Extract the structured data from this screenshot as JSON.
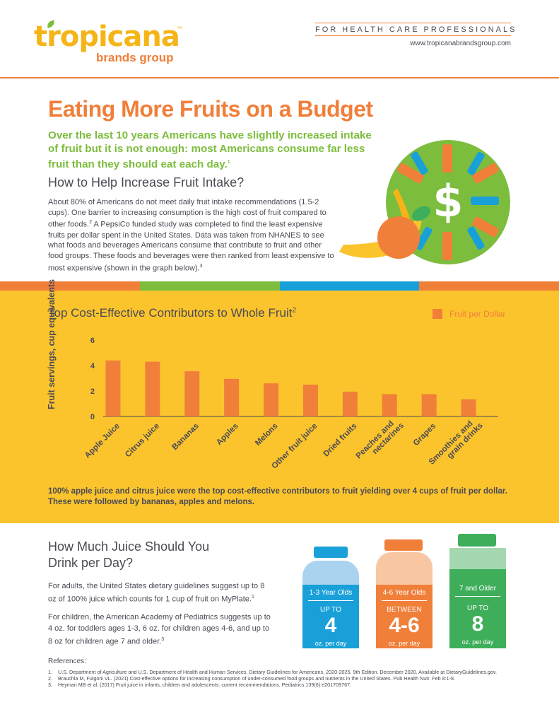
{
  "header": {
    "logo_word": "tropicana",
    "logo_tm": "™",
    "logo_sub": "brands group",
    "audience": "FOR HEALTH CARE PROFESSIONALS",
    "website": "www.tropicanabrandsgroup.com"
  },
  "intro": {
    "title": "Eating More Fruits on a Budget",
    "lead": "Over the last 10 years Americans have slightly increased intake of fruit but it is not enough: most Americans consume far less fruit than they should eat each day.",
    "lead_ref": "1",
    "heading": "How to Help Increase Fruit Intake?",
    "body_a": "About 80% of Americans do not meet daily fruit intake recommendations (1.5-2 cups). One barrier to increasing consumption is the high cost of fruit compared to other foods.",
    "body_ref_a": "2",
    "body_b": " A PepsiCo funded study was completed to find the least expensive fruits per dollar spent in the United States. Data was taken from NHANES to see what foods and beverages Americans consume that contribute to fruit and other food groups. These foods and beverages were then ranked from least expensive to most expensive (shown in the graph below).",
    "body_ref_b": "3",
    "illustration_icon": "dollar-sign",
    "illustration_symbol": "$"
  },
  "strip_colors": [
    "#f07f3a",
    "#7dbd3d",
    "#1aa0d8",
    "#f07f3a"
  ],
  "chart_section": {
    "title": "Top Cost-Effective Contributors to Whole Fruit",
    "title_ref": "2",
    "note": "100% apple juice and citrus juice were the top cost-effective contributors to fruit yielding over 4 cups of fruit per dollar. These were followed by bananas, apples and melons."
  },
  "chart_data": {
    "type": "bar",
    "title": "Top Cost-Effective Contributors to Whole Fruit",
    "ylabel": "Fruit servings, cup equivalents",
    "xlabel": "",
    "categories": [
      "Apple Juice",
      "Citrus juice",
      "Bananas",
      "Apples",
      "Melons",
      "Other fruit juice",
      "Dried fruits",
      "Peaches and nectarines",
      "Grapes",
      "Smoothies and grain drinks"
    ],
    "series": [
      {
        "name": "Fruit per Dollar",
        "values": [
          4.4,
          4.3,
          3.55,
          2.95,
          2.6,
          2.5,
          1.95,
          1.75,
          1.75,
          1.35
        ],
        "color": "#f07f3a"
      }
    ],
    "ylim": [
      0,
      6
    ],
    "yticks": [
      0,
      2,
      4,
      6
    ],
    "grid": false,
    "legend_position": "top-right"
  },
  "juice": {
    "heading": "How Much Juice Should You Drink per Day?",
    "p1": "For adults, the United States dietary guidelines suggest up to 8 oz of 100% juice which counts for 1 cup of fruit on MyPlate.",
    "p1_ref": "1",
    "p2": "For children, the American Academy of Pediatrics suggests up to 4 oz. for toddlers ages 1-3, 6 oz. for children ages 4-6, and up to 8 oz for children age 7 and older.",
    "p2_ref": "3",
    "bottles": [
      {
        "age": "1-3 Year Olds",
        "qualifier": "UP TO",
        "amount": "4",
        "unit": "oz. per day",
        "cap_color": "#1aa0d8",
        "neck_color": "#a9d3ee",
        "body_color": "#1aa0d8"
      },
      {
        "age": "4-6 Year Olds",
        "qualifier": "BETWEEN",
        "amount": "4-6",
        "unit": "oz. per day",
        "cap_color": "#f07f3a",
        "neck_color": "#f9c6a3",
        "body_color": "#f07f3a"
      },
      {
        "age": "7 and Older",
        "qualifier": "UP TO",
        "amount": "8",
        "unit": "oz. per day",
        "cap_color": "#3fae5a",
        "neck_color": "#a5d8b1",
        "body_color": "#3fae5a"
      }
    ]
  },
  "references": {
    "title": "References:",
    "items": [
      {
        "num": "1.",
        "text": "U.S. Department of Agriculture and U.S. Department of Health and Human Services. Dietary Guidelines for Americans, 2020-2025. 9th Edition. December 2020. Available at DietaryGuidelines.gov."
      },
      {
        "num": "2.",
        "text": "Brauchla M, Fulgoni VL. (2021) Cost-effective options for increasing consumption of under-consumed food groups and nutrients in the United States. Pub Health Nutr. Feb 8:1-8."
      },
      {
        "num": "3.",
        "text": "Heyman MB et al. (2017) Fruit juice in infants, children and adolescents: current recommendations. Pediatrics 139(6) e201709767."
      }
    ]
  }
}
